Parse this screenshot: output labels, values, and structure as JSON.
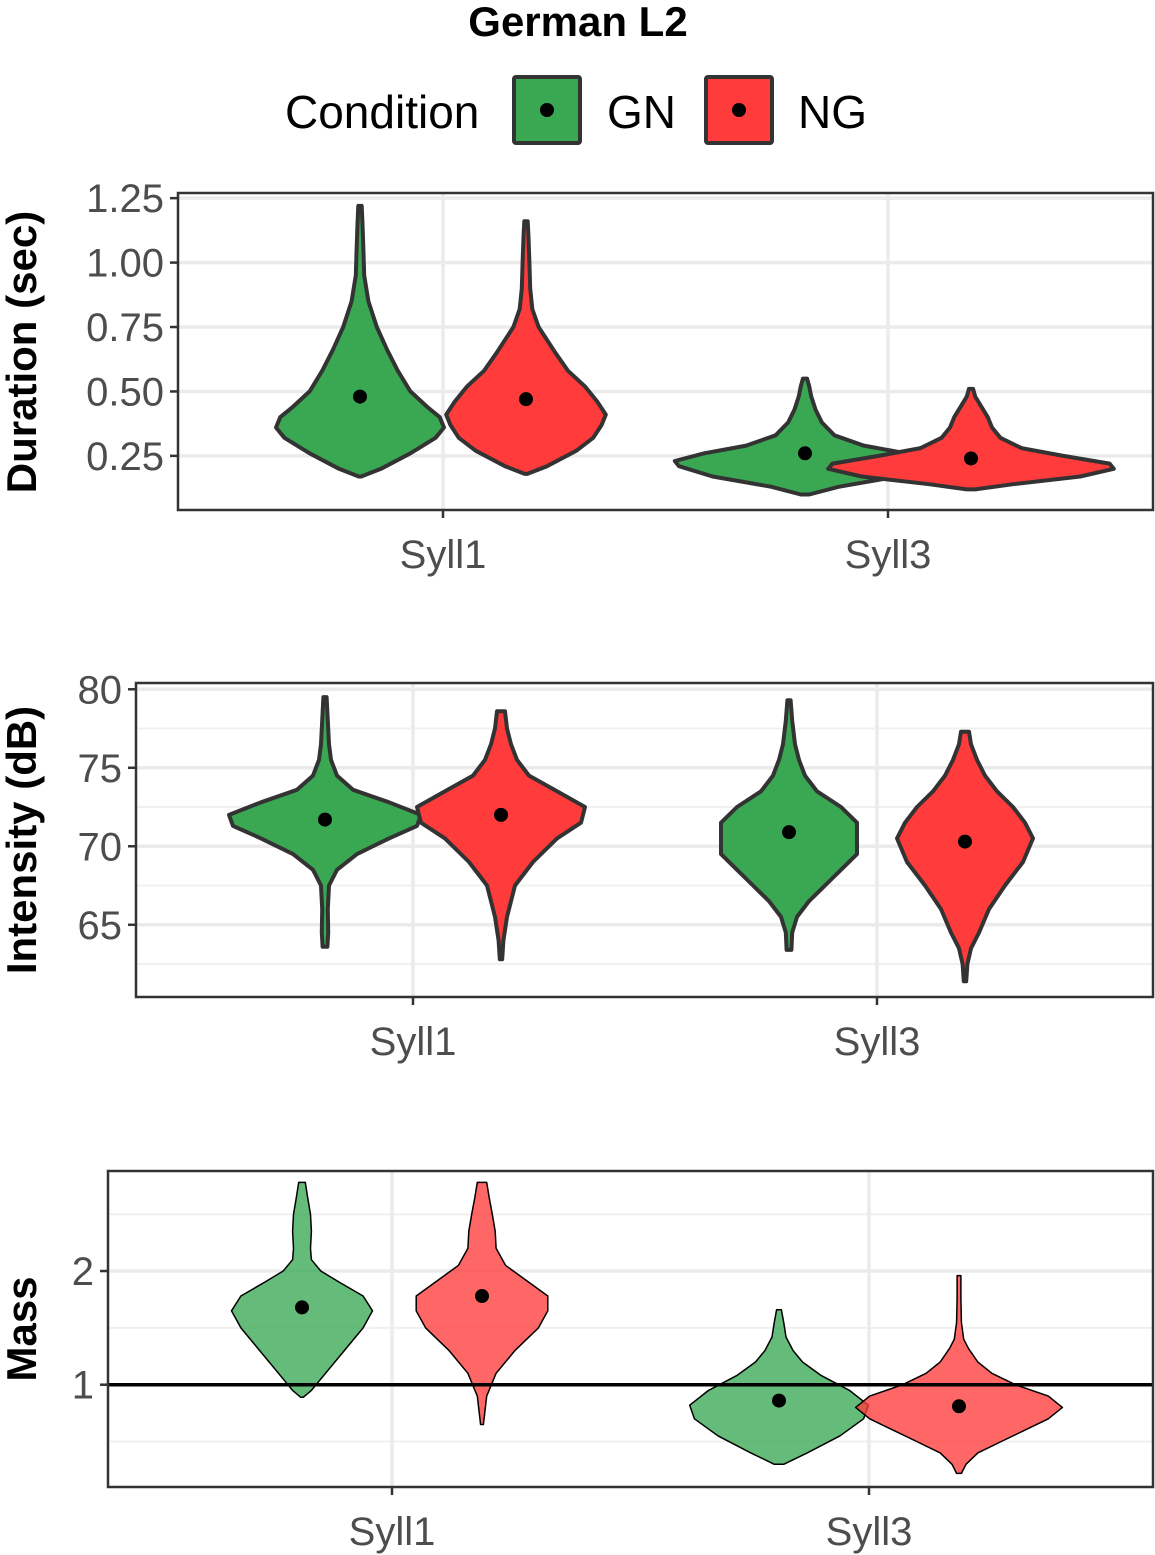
{
  "title": "German L2",
  "legend": {
    "title": "Condition",
    "entries": [
      {
        "name": "GN",
        "color": "#3aa853"
      },
      {
        "name": "NG",
        "color": "#ff3b3b"
      }
    ]
  },
  "colors": {
    "GN": "#3aa853",
    "NG": "#ff3b3b",
    "outline": "#333333",
    "grid": "#ebebeb"
  },
  "chart_data": [
    {
      "type": "violin",
      "ylabel": "Duration (sec)",
      "categories": [
        "Syll1",
        "Syll3"
      ],
      "ylim": [
        0.04,
        1.27
      ],
      "yticks": [
        0.25,
        0.5,
        0.75,
        1.0
      ],
      "ytick_labels": [
        "0.25",
        "0.50",
        "0.75",
        "1.00",
        "1.25"
      ],
      "ytick_values": [
        0.25,
        0.5,
        0.75,
        1.0,
        1.25
      ],
      "grid": true,
      "series": [
        {
          "name": "GN",
          "violins": [
            {
              "category": "Syll1",
              "mean": 0.48,
              "profile": [
                [
                  0.17,
                  0.003
                ],
                [
                  0.2,
                  0.05
                ],
                [
                  0.26,
                  0.12
                ],
                [
                  0.32,
                  0.18
                ],
                [
                  0.36,
                  0.2
                ],
                [
                  0.4,
                  0.19
                ],
                [
                  0.44,
                  0.16
                ],
                [
                  0.5,
                  0.12
                ],
                [
                  0.58,
                  0.09
                ],
                [
                  0.66,
                  0.065
                ],
                [
                  0.75,
                  0.04
                ],
                [
                  0.85,
                  0.02
                ],
                [
                  0.95,
                  0.01
                ],
                [
                  1.05,
                  0.008
                ],
                [
                  1.15,
                  0.006
                ],
                [
                  1.22,
                  0.004
                ]
              ]
            },
            {
              "category": "Syll3",
              "mean": 0.26,
              "profile": [
                [
                  0.1,
                  0.01
                ],
                [
                  0.13,
                  0.08
                ],
                [
                  0.17,
                  0.22
                ],
                [
                  0.21,
                  0.3
                ],
                [
                  0.23,
                  0.31
                ],
                [
                  0.26,
                  0.24
                ],
                [
                  0.29,
                  0.14
                ],
                [
                  0.33,
                  0.07
                ],
                [
                  0.38,
                  0.04
                ],
                [
                  0.43,
                  0.025
                ],
                [
                  0.48,
                  0.015
                ],
                [
                  0.52,
                  0.01
                ],
                [
                  0.55,
                  0.005
                ]
              ]
            }
          ]
        },
        {
          "name": "NG",
          "violins": [
            {
              "category": "Syll1",
              "mean": 0.47,
              "profile": [
                [
                  0.18,
                  0.003
                ],
                [
                  0.21,
                  0.05
                ],
                [
                  0.27,
                  0.12
                ],
                [
                  0.32,
                  0.16
                ],
                [
                  0.37,
                  0.18
                ],
                [
                  0.41,
                  0.19
                ],
                [
                  0.46,
                  0.17
                ],
                [
                  0.52,
                  0.14
                ],
                [
                  0.58,
                  0.1
                ],
                [
                  0.65,
                  0.07
                ],
                [
                  0.75,
                  0.03
                ],
                [
                  0.82,
                  0.015
                ],
                [
                  0.9,
                  0.01
                ],
                [
                  1.0,
                  0.008
                ],
                [
                  1.1,
                  0.006
                ],
                [
                  1.16,
                  0.004
                ]
              ]
            },
            {
              "category": "Syll3",
              "mean": 0.24,
              "profile": [
                [
                  0.12,
                  0.01
                ],
                [
                  0.14,
                  0.1
                ],
                [
                  0.17,
                  0.26
                ],
                [
                  0.2,
                  0.34
                ],
                [
                  0.22,
                  0.33
                ],
                [
                  0.25,
                  0.22
                ],
                [
                  0.28,
                  0.12
                ],
                [
                  0.32,
                  0.07
                ],
                [
                  0.36,
                  0.05
                ],
                [
                  0.4,
                  0.04
                ],
                [
                  0.44,
                  0.025
                ],
                [
                  0.48,
                  0.01
                ],
                [
                  0.51,
                  0.005
                ]
              ]
            }
          ]
        }
      ]
    },
    {
      "type": "violin",
      "ylabel": "Intensity (dB)",
      "categories": [
        "Syll1",
        "Syll3"
      ],
      "ylim": [
        60.4,
        80.4
      ],
      "yticks": [
        62.5,
        67.5,
        72.5,
        77.5
      ],
      "ytick_labels": [
        "65",
        "70",
        "75",
        "80"
      ],
      "ytick_values": [
        65,
        70,
        75,
        80
      ],
      "grid": true,
      "series": [
        {
          "name": "GN",
          "violins": [
            {
              "category": "Syll1",
              "mean": 71.7,
              "profile": [
                [
                  63.6,
                  0.006
                ],
                [
                  64.5,
                  0.008
                ],
                [
                  66,
                  0.007
                ],
                [
                  67.5,
                  0.01
                ],
                [
                  68.5,
                  0.03
                ],
                [
                  69.5,
                  0.08
                ],
                [
                  70.5,
                  0.16
                ],
                [
                  71.3,
                  0.23
                ],
                [
                  72.0,
                  0.24
                ],
                [
                  72.8,
                  0.16
                ],
                [
                  73.6,
                  0.07
                ],
                [
                  74.5,
                  0.03
                ],
                [
                  75.5,
                  0.015
                ],
                [
                  76.5,
                  0.01
                ],
                [
                  78,
                  0.007
                ],
                [
                  79.5,
                  0.004
                ]
              ]
            },
            {
              "category": "Syll3",
              "mean": 70.9,
              "profile": [
                [
                  63.4,
                  0.006
                ],
                [
                  64.5,
                  0.008
                ],
                [
                  65.5,
                  0.02
                ],
                [
                  66.5,
                  0.05
                ],
                [
                  67.5,
                  0.09
                ],
                [
                  68.5,
                  0.13
                ],
                [
                  69.5,
                  0.17
                ],
                [
                  70.5,
                  0.17
                ],
                [
                  71.5,
                  0.17
                ],
                [
                  72.5,
                  0.13
                ],
                [
                  73.5,
                  0.07
                ],
                [
                  74.5,
                  0.04
                ],
                [
                  75.5,
                  0.025
                ],
                [
                  76.5,
                  0.015
                ],
                [
                  78,
                  0.008
                ],
                [
                  79.3,
                  0.004
                ]
              ]
            }
          ]
        },
        {
          "name": "NG",
          "violins": [
            {
              "category": "Syll1",
              "mean": 72.0,
              "profile": [
                [
                  62.8,
                  0.003
                ],
                [
                  64,
                  0.006
                ],
                [
                  65.5,
                  0.015
                ],
                [
                  67.5,
                  0.035
                ],
                [
                  69,
                  0.08
                ],
                [
                  70.5,
                  0.14
                ],
                [
                  71.5,
                  0.2
                ],
                [
                  72.5,
                  0.21
                ],
                [
                  73.5,
                  0.14
                ],
                [
                  74.5,
                  0.07
                ],
                [
                  75.5,
                  0.04
                ],
                [
                  76.5,
                  0.025
                ],
                [
                  77.5,
                  0.015
                ],
                [
                  78.6,
                  0.01
                ]
              ]
            },
            {
              "category": "Syll3",
              "mean": 70.3,
              "profile": [
                [
                  61.4,
                  0.003
                ],
                [
                  62.5,
                  0.006
                ],
                [
                  63.5,
                  0.015
                ],
                [
                  64.5,
                  0.035
                ],
                [
                  66,
                  0.06
                ],
                [
                  67.5,
                  0.1
                ],
                [
                  69,
                  0.145
                ],
                [
                  70.5,
                  0.17
                ],
                [
                  71.5,
                  0.15
                ],
                [
                  72.5,
                  0.12
                ],
                [
                  73.5,
                  0.08
                ],
                [
                  74.5,
                  0.05
                ],
                [
                  75.5,
                  0.03
                ],
                [
                  76.5,
                  0.015
                ],
                [
                  77.3,
                  0.01
                ]
              ]
            }
          ]
        }
      ]
    },
    {
      "type": "violin",
      "ylabel": "Mass",
      "categories": [
        "Syll1",
        "Syll3"
      ],
      "ylim": [
        0.1,
        2.88
      ],
      "yticks": [
        0.5,
        1.5,
        2.5
      ],
      "ytick_labels": [
        "1",
        "2"
      ],
      "ytick_values": [
        1,
        2
      ],
      "grid": true,
      "hline": 1,
      "series": [
        {
          "name": "GN",
          "violins": [
            {
              "category": "Syll1",
              "mean": 1.68,
              "profile": [
                [
                  0.89,
                  0.003
                ],
                [
                  0.95,
                  0.02
                ],
                [
                  1.1,
                  0.05
                ],
                [
                  1.3,
                  0.09
                ],
                [
                  1.5,
                  0.13
                ],
                [
                  1.65,
                  0.15
                ],
                [
                  1.78,
                  0.13
                ],
                [
                  1.9,
                  0.08
                ],
                [
                  2.0,
                  0.04
                ],
                [
                  2.1,
                  0.02
                ],
                [
                  2.2,
                  0.018
                ],
                [
                  2.35,
                  0.02
                ],
                [
                  2.5,
                  0.018
                ],
                [
                  2.65,
                  0.012
                ],
                [
                  2.78,
                  0.007
                ]
              ]
            },
            {
              "category": "Syll3",
              "mean": 0.86,
              "profile": [
                [
                  0.3,
                  0.01
                ],
                [
                  0.4,
                  0.06
                ],
                [
                  0.55,
                  0.13
                ],
                [
                  0.7,
                  0.18
                ],
                [
                  0.82,
                  0.19
                ],
                [
                  0.95,
                  0.15
                ],
                [
                  1.08,
                  0.09
                ],
                [
                  1.2,
                  0.05
                ],
                [
                  1.3,
                  0.03
                ],
                [
                  1.42,
                  0.015
                ],
                [
                  1.55,
                  0.01
                ],
                [
                  1.66,
                  0.005
                ]
              ]
            }
          ]
        },
        {
          "name": "NG",
          "violins": [
            {
              "category": "Syll1",
              "mean": 1.78,
              "profile": [
                [
                  0.65,
                  0.003
                ],
                [
                  0.9,
                  0.01
                ],
                [
                  1.1,
                  0.03
                ],
                [
                  1.3,
                  0.07
                ],
                [
                  1.5,
                  0.12
                ],
                [
                  1.65,
                  0.14
                ],
                [
                  1.78,
                  0.14
                ],
                [
                  1.9,
                  0.1
                ],
                [
                  2.05,
                  0.05
                ],
                [
                  2.2,
                  0.03
                ],
                [
                  2.35,
                  0.028
                ],
                [
                  2.5,
                  0.022
                ],
                [
                  2.65,
                  0.015
                ],
                [
                  2.78,
                  0.01
                ]
              ]
            },
            {
              "category": "Syll3",
              "mean": 0.81,
              "profile": [
                [
                  0.22,
                  0.005
                ],
                [
                  0.3,
                  0.015
                ],
                [
                  0.4,
                  0.04
                ],
                [
                  0.5,
                  0.09
                ],
                [
                  0.6,
                  0.14
                ],
                [
                  0.7,
                  0.19
                ],
                [
                  0.8,
                  0.22
                ],
                [
                  0.9,
                  0.19
                ],
                [
                  1.0,
                  0.12
                ],
                [
                  1.1,
                  0.07
                ],
                [
                  1.2,
                  0.04
                ],
                [
                  1.32,
                  0.02
                ],
                [
                  1.4,
                  0.01
                ],
                [
                  1.55,
                  0.005
                ],
                [
                  1.75,
                  0.004
                ],
                [
                  1.96,
                  0.004
                ]
              ]
            }
          ]
        }
      ]
    }
  ]
}
